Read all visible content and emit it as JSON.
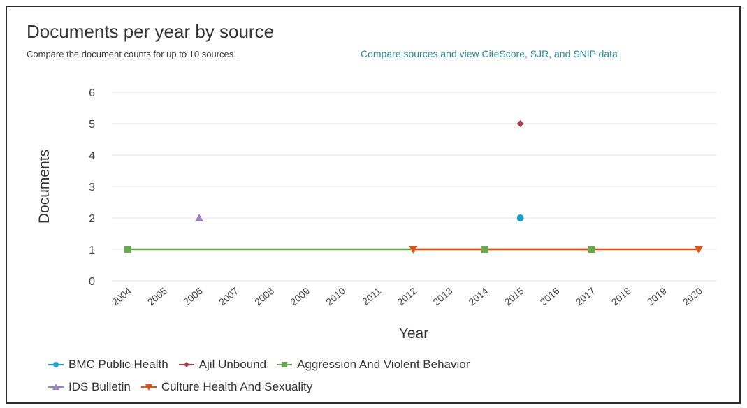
{
  "header": {
    "title": "Documents per year by source",
    "subtitle": "Compare the document counts for up to 10 sources.",
    "compare_link": "Compare sources and view CiteScore, SJR, and SNIP data"
  },
  "chart_data": {
    "type": "line",
    "xlabel": "Year",
    "ylabel": "Documents",
    "categories": [
      "2004",
      "2005",
      "2006",
      "2007",
      "2008",
      "2009",
      "2010",
      "2011",
      "2012",
      "2013",
      "2014",
      "2015",
      "2016",
      "2017",
      "2018",
      "2019",
      "2020"
    ],
    "yticks": [
      "0",
      "1",
      "2",
      "3",
      "4",
      "5",
      "6"
    ],
    "ylim": [
      0,
      6
    ],
    "grid": true,
    "legend_position": "bottom-left",
    "series": [
      {
        "name": "BMC Public Health",
        "color": "#1b9fc4",
        "marker": "circle",
        "points": [
          {
            "x": "2015",
            "y": 2
          }
        ]
      },
      {
        "name": "Ajil Unbound",
        "color": "#b03a48",
        "marker": "diamond",
        "points": [
          {
            "x": "2015",
            "y": 5
          }
        ]
      },
      {
        "name": "Aggression And Violent Behavior",
        "color": "#6aa84f",
        "marker": "square",
        "points": [
          {
            "x": "2004",
            "y": 1
          },
          {
            "x": "2014",
            "y": 1
          },
          {
            "x": "2017",
            "y": 1
          }
        ]
      },
      {
        "name": "IDS Bulletin",
        "color": "#9b7fc0",
        "marker": "triangle-up",
        "points": [
          {
            "x": "2006",
            "y": 2
          }
        ]
      },
      {
        "name": "Culture Health And Sexuality",
        "color": "#d9531e",
        "marker": "triangle-down",
        "points": [
          {
            "x": "2012",
            "y": 1
          },
          {
            "x": "2020",
            "y": 1
          }
        ]
      }
    ]
  }
}
